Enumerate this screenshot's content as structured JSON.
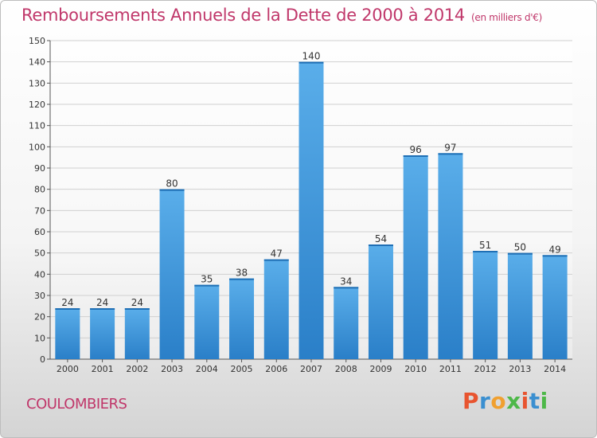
{
  "header": {
    "title": "Remboursements Annuels de la Dette de 2000 à 2014",
    "unit": "(en milliers d'€)"
  },
  "footer": {
    "commune": "COULOMBIERS",
    "brand": "Proxiti",
    "brand_colors": [
      "#e8542f",
      "#3a8fd0",
      "#f0a030",
      "#4db848",
      "#e8542f",
      "#3a8fd0",
      "#4db848"
    ]
  },
  "colors": {
    "title": "#c0376a",
    "bar_light": "#5aaeea",
    "bar_dark": "#2a7fc8",
    "grid": "#d0d0d0",
    "axis_text": "#333333"
  },
  "chart_data": {
    "type": "bar",
    "title": "Remboursements Annuels de la Dette de 2000 à 2014",
    "xlabel": "",
    "ylabel": "",
    "categories": [
      "2000",
      "2001",
      "2002",
      "2003",
      "2004",
      "2005",
      "2006",
      "2007",
      "2008",
      "2009",
      "2010",
      "2011",
      "2012",
      "2013",
      "2014"
    ],
    "values": [
      24,
      24,
      24,
      80,
      35,
      38,
      47,
      140,
      34,
      54,
      96,
      97,
      51,
      50,
      49
    ],
    "ylim": [
      0,
      150
    ],
    "yticks": [
      0,
      10,
      20,
      30,
      40,
      50,
      60,
      70,
      80,
      90,
      100,
      110,
      120,
      130,
      140,
      150
    ],
    "grid": true,
    "data_labels": true
  }
}
